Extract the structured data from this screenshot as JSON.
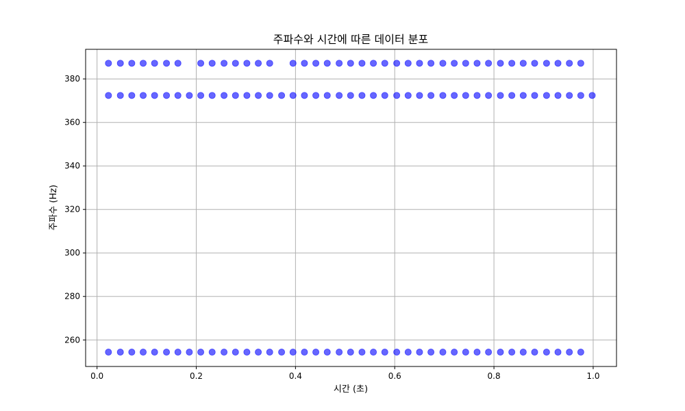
{
  "chart_data": {
    "type": "scatter",
    "title": "주파수와 시간에 따른 데이터 분포",
    "xlabel": "시간 (초)",
    "ylabel": "주파수 (Hz)",
    "xlim": [
      -0.023,
      1.047
    ],
    "ylim": [
      247.8,
      393.6
    ],
    "xticks": [
      0.0,
      0.2,
      0.4,
      0.6,
      0.8,
      1.0
    ],
    "xtick_labels": [
      "0.0",
      "0.2",
      "0.4",
      "0.6",
      "0.8",
      "1.0"
    ],
    "yticks": [
      260,
      280,
      300,
      320,
      340,
      360,
      380
    ],
    "ytick_labels": [
      "260",
      "280",
      "300",
      "320",
      "340",
      "360",
      "380"
    ],
    "grid": true,
    "marker_color": "#0000ff",
    "marker_alpha": 0.6,
    "series": [
      {
        "frequency": 254.4,
        "x": [
          0.023,
          0.047,
          0.07,
          0.093,
          0.116,
          0.14,
          0.163,
          0.186,
          0.209,
          0.232,
          0.256,
          0.279,
          0.302,
          0.325,
          0.348,
          0.372,
          0.395,
          0.418,
          0.441,
          0.464,
          0.488,
          0.511,
          0.534,
          0.557,
          0.58,
          0.604,
          0.627,
          0.65,
          0.673,
          0.697,
          0.72,
          0.743,
          0.766,
          0.789,
          0.813,
          0.836,
          0.859,
          0.882,
          0.906,
          0.929,
          0.952,
          0.975
        ],
        "y_value": 254.4
      },
      {
        "frequency": 372.4,
        "x": [
          0.023,
          0.047,
          0.07,
          0.093,
          0.116,
          0.14,
          0.163,
          0.186,
          0.209,
          0.232,
          0.256,
          0.279,
          0.302,
          0.325,
          0.348,
          0.372,
          0.395,
          0.418,
          0.441,
          0.464,
          0.488,
          0.511,
          0.534,
          0.557,
          0.58,
          0.604,
          0.627,
          0.65,
          0.673,
          0.697,
          0.72,
          0.743,
          0.766,
          0.789,
          0.813,
          0.836,
          0.859,
          0.882,
          0.906,
          0.929,
          0.952,
          0.975,
          0.998
        ],
        "y_value": 372.4
      },
      {
        "frequency": 387.2,
        "x": [
          0.023,
          0.047,
          0.07,
          0.093,
          0.116,
          0.14,
          0.163,
          0.209,
          0.232,
          0.256,
          0.279,
          0.302,
          0.325,
          0.348,
          0.395,
          0.418,
          0.441,
          0.464,
          0.488,
          0.511,
          0.534,
          0.557,
          0.58,
          0.604,
          0.627,
          0.65,
          0.673,
          0.697,
          0.72,
          0.743,
          0.766,
          0.789,
          0.813,
          0.836,
          0.859,
          0.882,
          0.906,
          0.929,
          0.952,
          0.975
        ],
        "y_value": 387.2
      }
    ]
  }
}
